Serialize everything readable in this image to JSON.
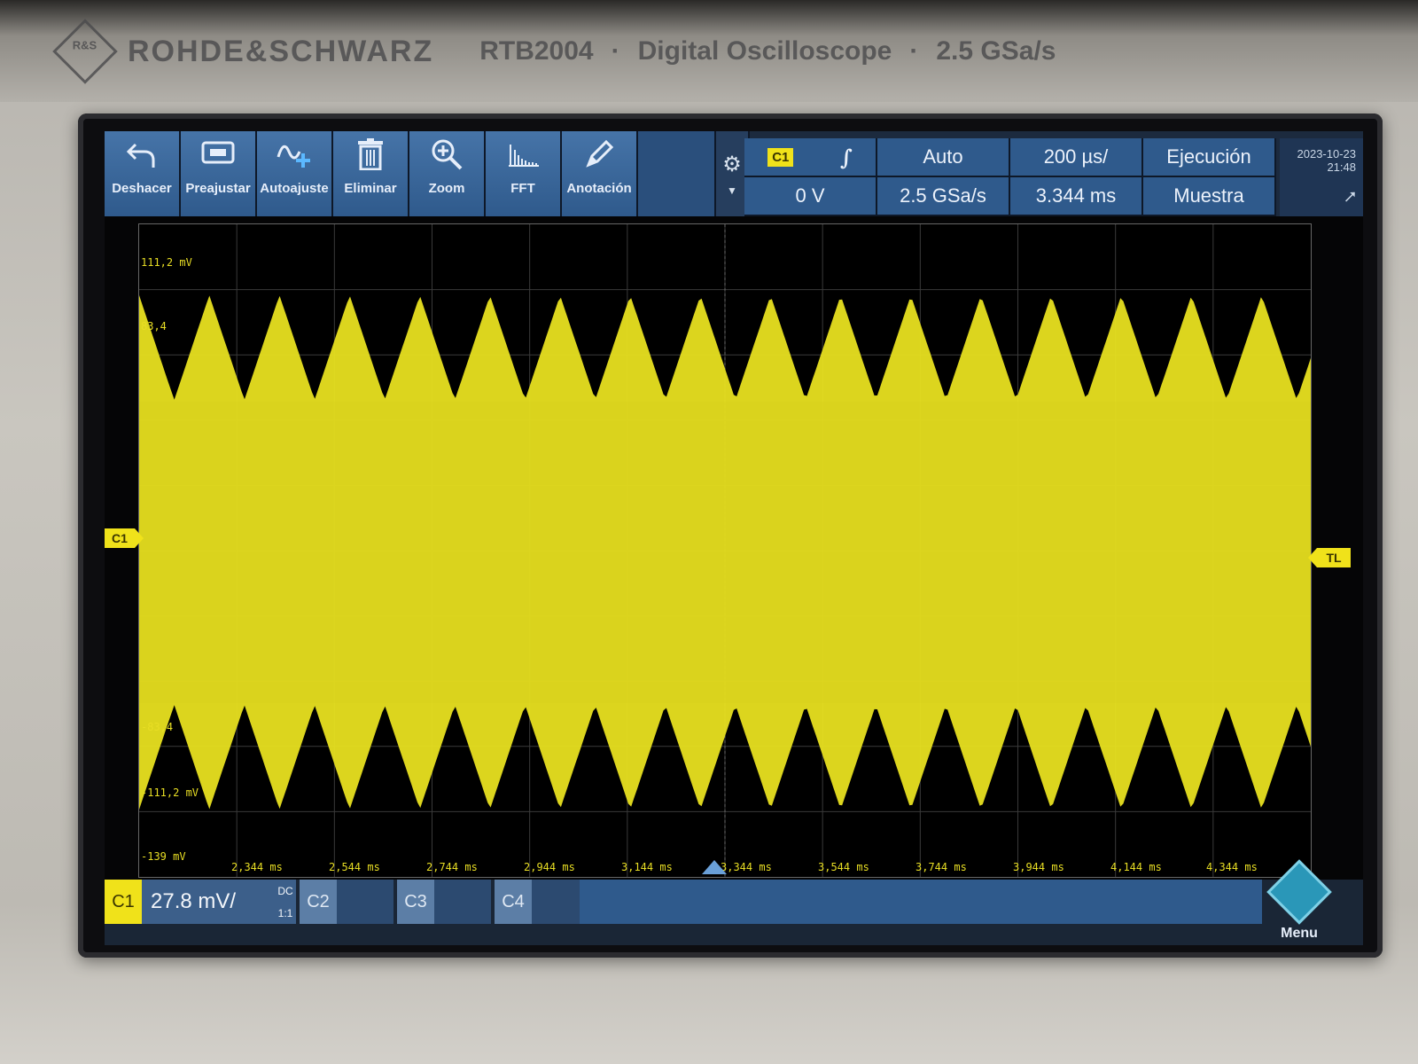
{
  "device": {
    "brand": "ROHDE&SCHWARZ",
    "model": "RTB2004",
    "separator": "·",
    "description": "Digital Oscilloscope",
    "rate": "2.5 GSa/s"
  },
  "toolbar": {
    "buttons": [
      {
        "label": "Deshacer",
        "icon": "undo-icon"
      },
      {
        "label": "Preajustar",
        "icon": "preset-icon"
      },
      {
        "label": "Autoajuste",
        "icon": "autoset-icon"
      },
      {
        "label": "Eliminar",
        "icon": "trash-icon"
      },
      {
        "label": "Zoom",
        "icon": "zoom-icon"
      },
      {
        "label": "FFT",
        "icon": "fft-icon"
      },
      {
        "label": "Anotación",
        "icon": "pencil-icon"
      }
    ]
  },
  "status": {
    "trigger_source": "C1",
    "trigger_slope": "∫",
    "trigger_mode": "Auto",
    "timebase": "200 µs/",
    "run_state": "Ejecución",
    "trigger_level": "0 V",
    "sample_rate": "2.5 GSa/s",
    "horizontal_position": "3.344 ms",
    "acquisition": "Muestra",
    "date": "2023-10-23",
    "time": "21:48"
  },
  "plot": {
    "y_labels": [
      "111,2 mV",
      "83,4",
      "-83,4",
      "-111,2 mV",
      "-139 mV"
    ],
    "x_labels": [
      "2,344 ms",
      "2,544 ms",
      "2,744 ms",
      "2,944 ms",
      "3,144 ms",
      "3,344 ms",
      "3,544 ms",
      "3,744 ms",
      "3,944 ms",
      "4,144 ms",
      "4,344 ms"
    ],
    "trace_color": "#e8e020",
    "channel_marker": "C1",
    "trigger_marker": "TL"
  },
  "channels": {
    "c1": {
      "label": "C1",
      "scale": "27.8 mV/",
      "coupling": "DC",
      "probe": "1:1"
    },
    "c2": {
      "label": "C2"
    },
    "c3": {
      "label": "C3"
    },
    "c4": {
      "label": "C4"
    }
  },
  "menu": {
    "label": "Menu"
  }
}
